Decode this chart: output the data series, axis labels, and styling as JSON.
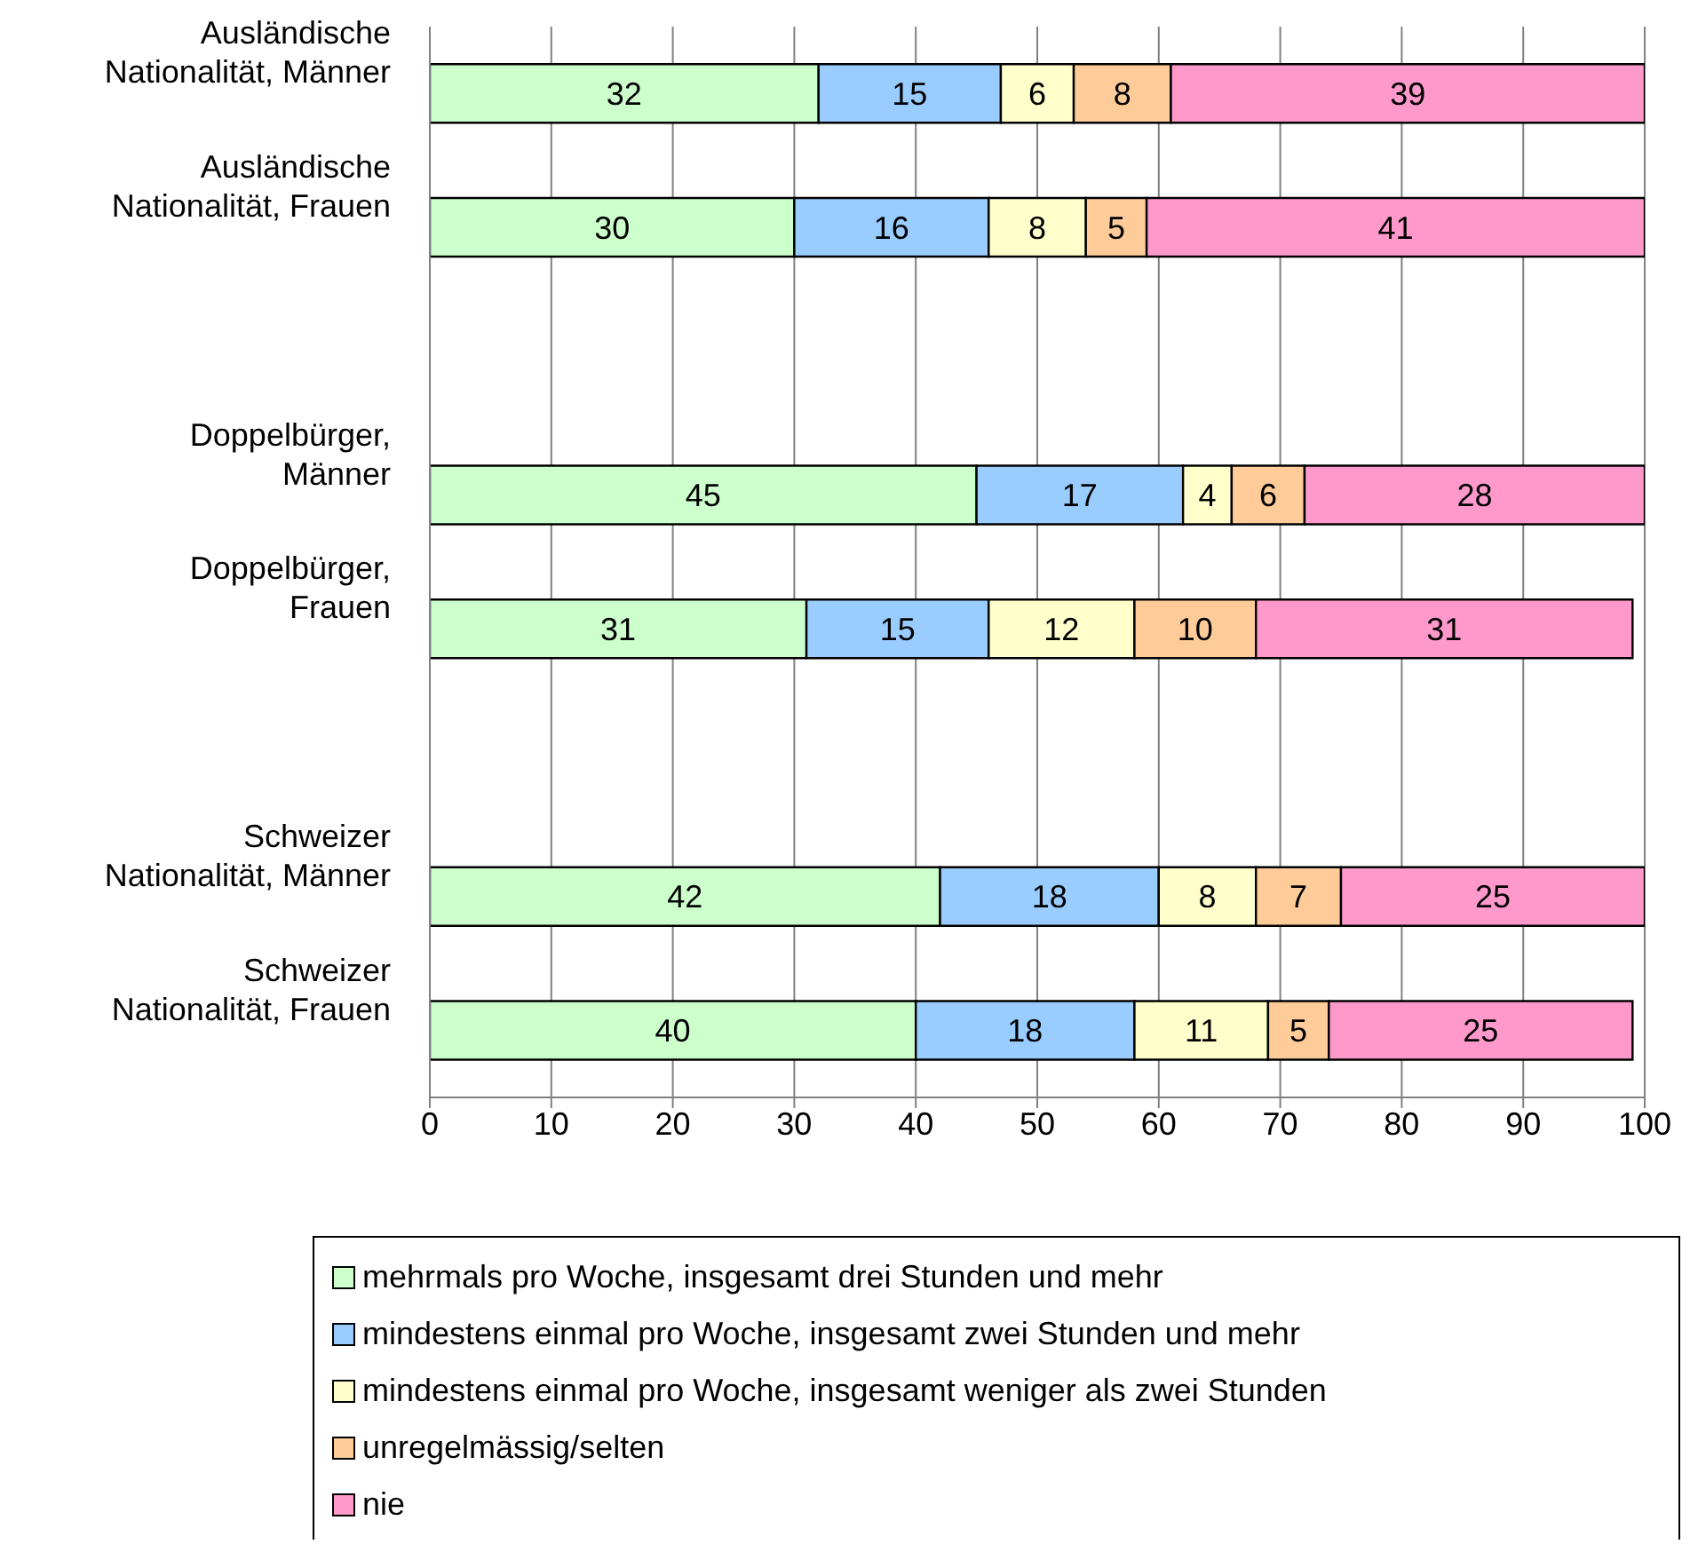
{
  "chart_data": {
    "type": "bar",
    "orientation": "horizontal",
    "stacked": true,
    "categories": [
      "Ausländische Nationalität, Männer",
      "Ausländische Nationalität, Frauen",
      null,
      "Doppelbürger, Männer",
      "Doppelbürger, Frauen",
      null,
      "Schweizer Nationalität, Männer",
      "Schweizer Nationalität, Frauen"
    ],
    "series": [
      {
        "name": "mehrmals pro Woche, insgesamt drei Stunden und mehr",
        "color": "#ccffcc",
        "values": [
          32,
          30,
          null,
          45,
          31,
          null,
          42,
          40
        ]
      },
      {
        "name": "mindestens einmal pro Woche, insgesamt zwei Stunden und mehr",
        "color": "#99ccff",
        "values": [
          15,
          16,
          null,
          17,
          15,
          null,
          18,
          18
        ]
      },
      {
        "name": "mindestens einmal pro Woche, insgesamt weniger als zwei Stunden",
        "color": "#ffffcc",
        "values": [
          6,
          8,
          null,
          4,
          12,
          null,
          8,
          11
        ]
      },
      {
        "name": "unregelmässig/selten",
        "color": "#ffcc99",
        "values": [
          8,
          5,
          null,
          6,
          10,
          null,
          7,
          5
        ]
      },
      {
        "name": "nie",
        "color": "#ff99cc",
        "values": [
          39,
          41,
          null,
          28,
          31,
          null,
          25,
          25
        ]
      }
    ],
    "xlim": [
      0,
      100
    ],
    "xticks": [
      0,
      10,
      20,
      30,
      40,
      50,
      60,
      70,
      80,
      90,
      100
    ],
    "grid": "x",
    "legend": "bottom",
    "data_labels": true
  }
}
